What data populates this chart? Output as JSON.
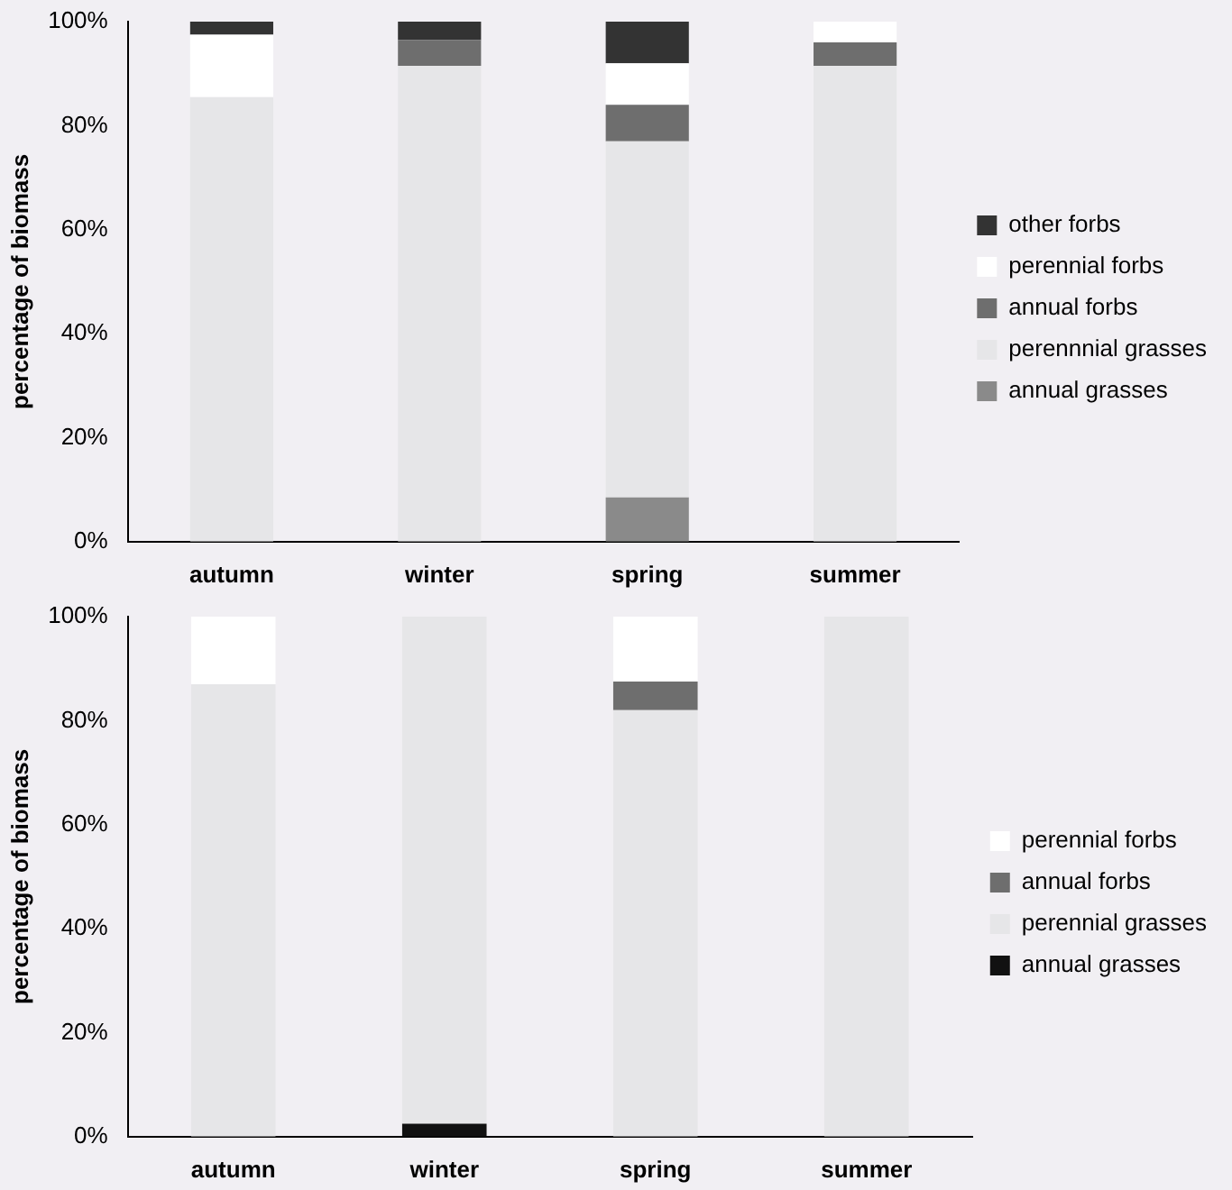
{
  "chart_data": [
    {
      "type": "bar",
      "stacked": true,
      "ylabel": "percentage of biomass",
      "categories": [
        "autumn",
        "winter",
        "spring",
        "summer"
      ],
      "ylim": [
        0,
        100
      ],
      "yticks": [
        {
          "value": 0,
          "label": "0%"
        },
        {
          "value": 20,
          "label": "20%"
        },
        {
          "value": 40,
          "label": "40%"
        },
        {
          "value": 60,
          "label": "60%"
        },
        {
          "value": 80,
          "label": "80%"
        },
        {
          "value": 100,
          "label": "100%"
        }
      ],
      "grid": false,
      "legend": "right",
      "series": [
        {
          "name": "annual grasses",
          "color": "#8a8a8a",
          "values": [
            0,
            0,
            8.5,
            0
          ]
        },
        {
          "name": "perennnial grasses",
          "color": "#e6e6e8",
          "values": [
            85.5,
            91.5,
            68.5,
            91.5
          ]
        },
        {
          "name": "annual forbs",
          "color": "#6e6e6e",
          "values": [
            0,
            5,
            7,
            4.5
          ]
        },
        {
          "name": "perennial forbs",
          "color": "#ffffff",
          "values": [
            12,
            0,
            8,
            4
          ]
        },
        {
          "name": "other forbs",
          "color": "#333333",
          "values": [
            2.5,
            3.5,
            8,
            0
          ]
        }
      ]
    },
    {
      "type": "bar",
      "stacked": true,
      "ylabel": "percentage of biomass",
      "categories": [
        "autumn",
        "winter",
        "spring",
        "summer"
      ],
      "ylim": [
        0,
        100
      ],
      "yticks": [
        {
          "value": 0,
          "label": "0%"
        },
        {
          "value": 20,
          "label": "20%"
        },
        {
          "value": 40,
          "label": "40%"
        },
        {
          "value": 60,
          "label": "60%"
        },
        {
          "value": 80,
          "label": "80%"
        },
        {
          "value": 100,
          "label": "100%"
        }
      ],
      "grid": false,
      "legend": "right",
      "series": [
        {
          "name": "annual grasses",
          "color": "#111111",
          "values": [
            0,
            2.5,
            0,
            0
          ]
        },
        {
          "name": "perennial grasses",
          "color": "#e6e6e8",
          "values": [
            87,
            97.5,
            82,
            100
          ]
        },
        {
          "name": "annual forbs",
          "color": "#6e6e6e",
          "values": [
            0,
            0,
            5.5,
            0
          ]
        },
        {
          "name": "perennial forbs",
          "color": "#ffffff",
          "values": [
            13,
            0,
            12.5,
            0
          ]
        }
      ]
    }
  ]
}
